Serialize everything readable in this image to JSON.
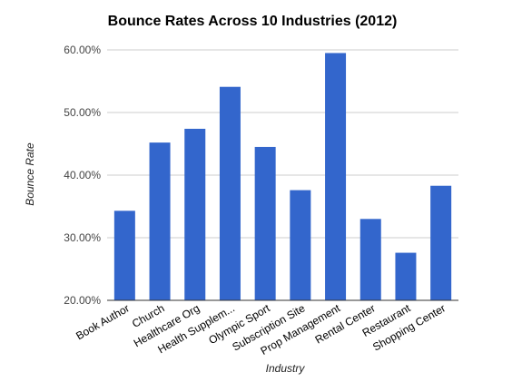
{
  "chart_data": {
    "type": "bar",
    "title": "Bounce Rates Across 10 Industries (2012)",
    "xlabel": "Industry",
    "ylabel": "Bounce Rate",
    "categories": [
      "Book Author",
      "Church",
      "Healthcare Org",
      "Health Supplem...",
      "Olympic Sport",
      "Subscription Site",
      "Prop Management",
      "Rental Center",
      "Restaurant",
      "Shopping Center"
    ],
    "values": [
      34.3,
      45.2,
      47.4,
      54.1,
      44.5,
      37.6,
      59.5,
      33.0,
      27.6,
      38.3
    ],
    "ylim": [
      20,
      60
    ],
    "yticks": [
      "20.00%",
      "30.00%",
      "40.00%",
      "50.00%",
      "60.00%"
    ],
    "grid": true,
    "bar_color": "#3366cc"
  }
}
